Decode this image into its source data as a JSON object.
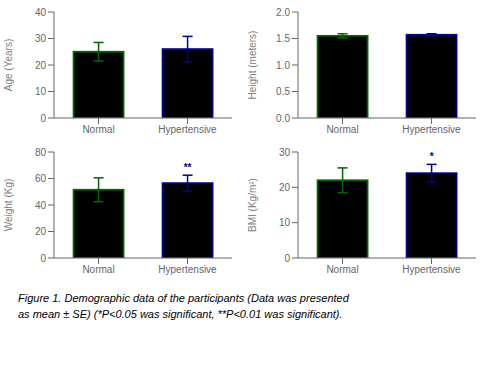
{
  "chart_data": [
    {
      "type": "bar",
      "ylabel": "Age (Years)",
      "categories": [
        "Normal",
        "Hypertensive"
      ],
      "values": [
        25.0,
        26.0
      ],
      "errors": [
        3.5,
        4.8
      ],
      "ylim": [
        0,
        40
      ],
      "yticks": [
        0,
        10,
        20,
        30,
        40
      ],
      "color": "#000000",
      "colors": [
        "#006600",
        "#000099"
      ],
      "annotations": []
    },
    {
      "type": "bar",
      "ylabel": "Height (meters)",
      "categories": [
        "Normal",
        "Hypertensive"
      ],
      "values": [
        1.55,
        1.57
      ],
      "errors": [
        0.04,
        0.02
      ],
      "ylim": [
        0.0,
        2.0
      ],
      "yticks": [
        {
          "value": 0,
          "label": "0.0"
        },
        0.5,
        {
          "value": 1,
          "label": "1.0"
        },
        1.5,
        {
          "value": 2,
          "label": "2.0"
        }
      ],
      "color": "#000000",
      "colors": [
        "#006600",
        "#000099"
      ],
      "annotations": []
    },
    {
      "type": "bar",
      "ylabel": "Weight (Kg)",
      "categories": [
        "Normal",
        "Hypertensive"
      ],
      "values": [
        51.5,
        56.5
      ],
      "errors": [
        9.0,
        6.0
      ],
      "ylim": [
        0,
        80
      ],
      "yticks": [
        0,
        20,
        40,
        60,
        80
      ],
      "color": "#000000",
      "colors": [
        "#006600",
        "#000099"
      ],
      "annotations": [
        {
          "x": "Hypertensive",
          "text": "**",
          "color": "#000099"
        }
      ]
    },
    {
      "type": "bar",
      "ylabel": "BMI (Kg/m²)",
      "categories": [
        "Normal",
        "Hypertensive"
      ],
      "values": [
        22.0,
        24.0
      ],
      "errors": [
        3.5,
        2.5
      ],
      "ylim": [
        0,
        30
      ],
      "yticks": [
        0,
        10,
        20,
        30
      ],
      "color": "#000000",
      "colors": [
        "#006600",
        "#000099"
      ],
      "annotations": [
        {
          "x": "Hypertensive",
          "text": "*",
          "color": "#000099"
        }
      ]
    }
  ],
  "caption": [
    "Figure 1. Demographic data of the participants (Data was presented",
    "as mean ± SE) (*P<0.05 was significant, **P<0.01 was significant)."
  ]
}
